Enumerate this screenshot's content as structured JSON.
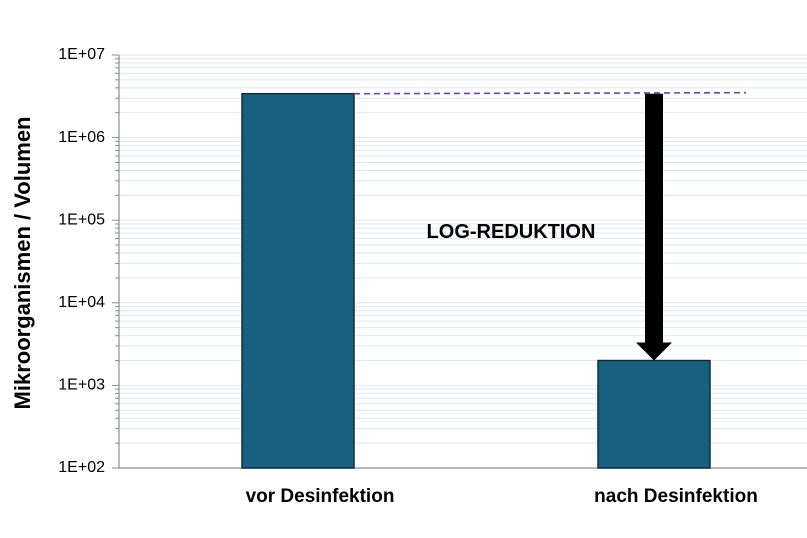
{
  "chart_data": {
    "type": "bar",
    "title": "",
    "xlabel": "",
    "ylabel": "Mikroorganismen / Volumen",
    "yscale": "log",
    "ylim": [
      100,
      10000000
    ],
    "yticks": [
      "1E+02",
      "1E+03",
      "1E+04",
      "1E+05",
      "1E+06",
      "1E+07"
    ],
    "categories": [
      "vor Desinfektion",
      "nach Desinfektion"
    ],
    "series": [
      {
        "values": [
          3400000,
          2000
        ]
      }
    ],
    "grid": "minor-horizontal",
    "annotation": {
      "text": "LOG-REDUKTION",
      "arrow_from": 3400000,
      "arrow_to": 2000,
      "reference_line_value": 3400000
    },
    "colors": {
      "bar": "#17607f",
      "bar_outline": "#0b2f40",
      "grid": "#dce8f2",
      "axis": "#8c8c8c",
      "reference_line": "#7a3fa0",
      "arrow": "#000000"
    }
  }
}
